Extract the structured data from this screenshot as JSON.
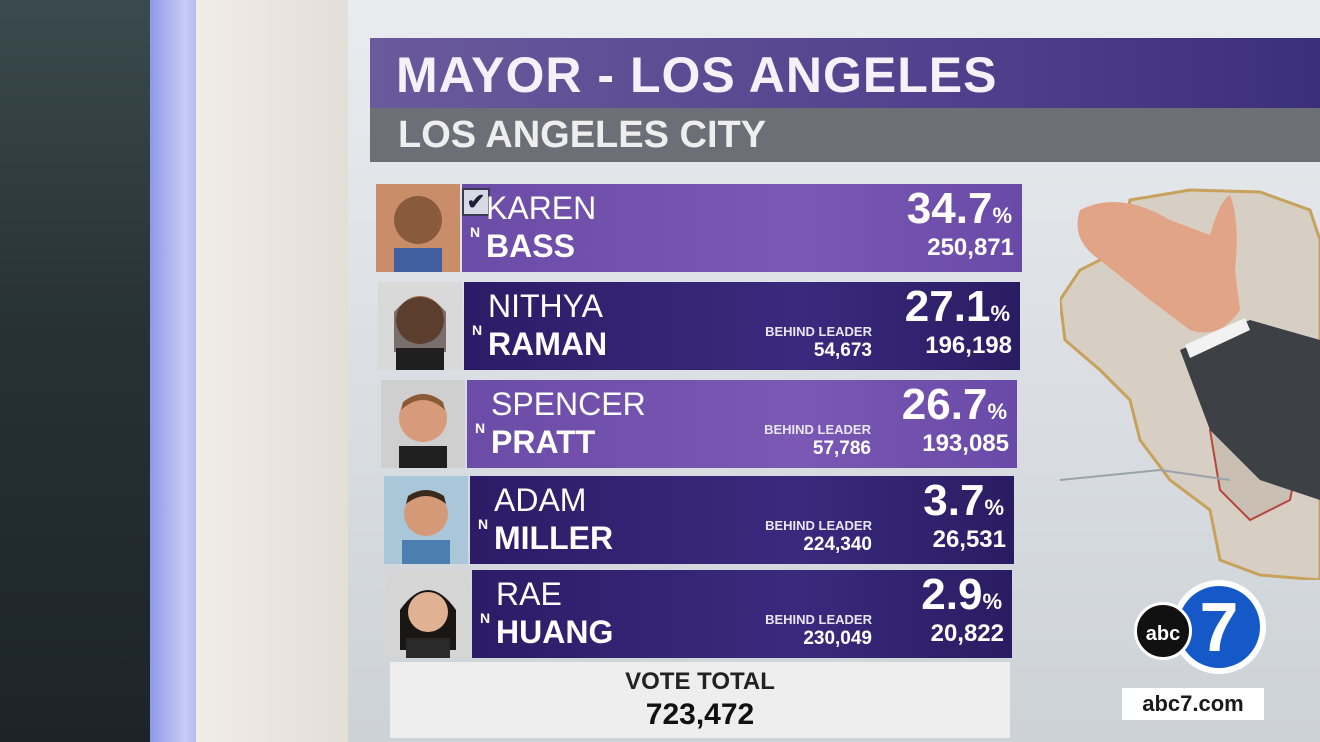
{
  "header": {
    "title": "MAYOR - LOS ANGELES",
    "subtitle": "LOS ANGELES CITY"
  },
  "candidates": [
    {
      "first": "KAREN",
      "last": "BASS",
      "party": "N",
      "winner": true,
      "percent": "34.7",
      "pct_sign": "%",
      "votes": "250,871",
      "behind_label": "",
      "behind_value": ""
    },
    {
      "first": "NITHYA",
      "last": "RAMAN",
      "party": "N",
      "winner": false,
      "percent": "27.1",
      "pct_sign": "%",
      "votes": "196,198",
      "behind_label": "BEHIND LEADER",
      "behind_value": "54,673"
    },
    {
      "first": "SPENCER",
      "last": "PRATT",
      "party": "N",
      "winner": false,
      "percent": "26.7",
      "pct_sign": "%",
      "votes": "193,085",
      "behind_label": "BEHIND LEADER",
      "behind_value": "57,786"
    },
    {
      "first": "ADAM",
      "last": "MILLER",
      "party": "N",
      "winner": false,
      "percent": "3.7",
      "pct_sign": "%",
      "votes": "26,531",
      "behind_label": "BEHIND LEADER",
      "behind_value": "224,340"
    },
    {
      "first": "RAE",
      "last": "HUANG",
      "party": "N",
      "winner": false,
      "percent": "2.9",
      "pct_sign": "%",
      "votes": "20,822",
      "behind_label": "BEHIND LEADER",
      "behind_value": "230,049"
    }
  ],
  "totals": {
    "label": "VOTE TOTAL",
    "value": "723,472"
  },
  "branding": {
    "abc": "abc",
    "seven": "7",
    "site": "abc7.com"
  },
  "colors": {
    "title_bar": "#4c3d8a",
    "bar_light": "#7a58b4",
    "bar_dark": "#3a2a7e",
    "logo_blue": "#1559c8"
  },
  "check_icon": "✔"
}
